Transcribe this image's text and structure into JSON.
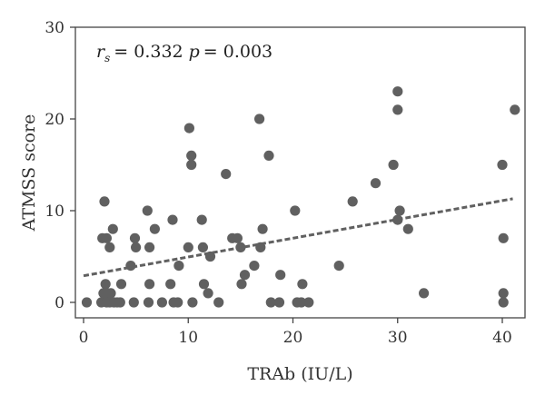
{
  "chart_data": {
    "type": "scatter",
    "title": "",
    "xlabel": "TRAb (IU/L)",
    "ylabel": "ATMSS score",
    "xlim": [
      0,
      42
    ],
    "ylim": [
      0,
      30
    ],
    "xticks": [
      0,
      10,
      20,
      30,
      40
    ],
    "yticks": [
      0,
      10,
      20,
      30
    ],
    "xtick_labels": [
      "0",
      "10",
      "20",
      "30",
      "40"
    ],
    "ytick_labels": [
      "0",
      "10",
      "20",
      "30"
    ],
    "grid": false,
    "legend": "none",
    "annotation": {
      "r_symbol": "r",
      "r_subscript": "s",
      "r_value": "= 0.332",
      "p_symbol": "p",
      "p_value": "= 0.003"
    },
    "point_color": "#606060",
    "trendline": {
      "style": "dashed",
      "color": "#606060",
      "x": [
        0,
        41
      ],
      "y": [
        2.9,
        11.3
      ]
    },
    "points": [
      {
        "x": 0.3,
        "y": 0
      },
      {
        "x": 1.7,
        "y": 0
      },
      {
        "x": 1.9,
        "y": 1
      },
      {
        "x": 1.8,
        "y": 7
      },
      {
        "x": 2.0,
        "y": 11
      },
      {
        "x": 2.1,
        "y": 2
      },
      {
        "x": 2.2,
        "y": 0
      },
      {
        "x": 2.3,
        "y": 1
      },
      {
        "x": 2.2,
        "y": 7
      },
      {
        "x": 2.5,
        "y": 0
      },
      {
        "x": 2.6,
        "y": 1
      },
      {
        "x": 2.5,
        "y": 6
      },
      {
        "x": 2.8,
        "y": 8
      },
      {
        "x": 2.9,
        "y": 0
      },
      {
        "x": 3.2,
        "y": 0
      },
      {
        "x": 3.5,
        "y": 0
      },
      {
        "x": 3.6,
        "y": 2
      },
      {
        "x": 4.5,
        "y": 4
      },
      {
        "x": 4.8,
        "y": 0
      },
      {
        "x": 4.9,
        "y": 7
      },
      {
        "x": 5.0,
        "y": 6
      },
      {
        "x": 6.1,
        "y": 10
      },
      {
        "x": 6.2,
        "y": 0
      },
      {
        "x": 6.3,
        "y": 6
      },
      {
        "x": 6.3,
        "y": 2
      },
      {
        "x": 6.8,
        "y": 8
      },
      {
        "x": 7.5,
        "y": 0
      },
      {
        "x": 8.3,
        "y": 2
      },
      {
        "x": 8.5,
        "y": 9
      },
      {
        "x": 8.6,
        "y": 0
      },
      {
        "x": 9.0,
        "y": 0
      },
      {
        "x": 9.1,
        "y": 4
      },
      {
        "x": 10.0,
        "y": 6
      },
      {
        "x": 10.1,
        "y": 19
      },
      {
        "x": 10.3,
        "y": 16
      },
      {
        "x": 10.3,
        "y": 15
      },
      {
        "x": 10.4,
        "y": 0
      },
      {
        "x": 11.3,
        "y": 9
      },
      {
        "x": 11.4,
        "y": 6
      },
      {
        "x": 11.5,
        "y": 2
      },
      {
        "x": 11.9,
        "y": 1
      },
      {
        "x": 12.1,
        "y": 5
      },
      {
        "x": 12.9,
        "y": 0
      },
      {
        "x": 13.6,
        "y": 14
      },
      {
        "x": 14.2,
        "y": 7
      },
      {
        "x": 14.7,
        "y": 7
      },
      {
        "x": 15.0,
        "y": 6
      },
      {
        "x": 15.1,
        "y": 2
      },
      {
        "x": 15.4,
        "y": 3
      },
      {
        "x": 16.3,
        "y": 4
      },
      {
        "x": 16.8,
        "y": 20
      },
      {
        "x": 16.9,
        "y": 6
      },
      {
        "x": 17.1,
        "y": 8
      },
      {
        "x": 17.7,
        "y": 16
      },
      {
        "x": 17.9,
        "y": 0
      },
      {
        "x": 18.7,
        "y": 0
      },
      {
        "x": 18.8,
        "y": 3
      },
      {
        "x": 20.2,
        "y": 10
      },
      {
        "x": 20.4,
        "y": 0
      },
      {
        "x": 20.8,
        "y": 0
      },
      {
        "x": 20.9,
        "y": 2
      },
      {
        "x": 21.5,
        "y": 0
      },
      {
        "x": 24.4,
        "y": 4
      },
      {
        "x": 25.7,
        "y": 11
      },
      {
        "x": 27.9,
        "y": 13
      },
      {
        "x": 29.6,
        "y": 15
      },
      {
        "x": 30.0,
        "y": 23
      },
      {
        "x": 30.0,
        "y": 21
      },
      {
        "x": 30.0,
        "y": 9
      },
      {
        "x": 30.2,
        "y": 10
      },
      {
        "x": 31.0,
        "y": 8
      },
      {
        "x": 32.5,
        "y": 1
      },
      {
        "x": 40.0,
        "y": 15
      },
      {
        "x": 40.1,
        "y": 7
      },
      {
        "x": 40.1,
        "y": 1
      },
      {
        "x": 40.1,
        "y": 0
      },
      {
        "x": 41.2,
        "y": 21
      }
    ]
  }
}
